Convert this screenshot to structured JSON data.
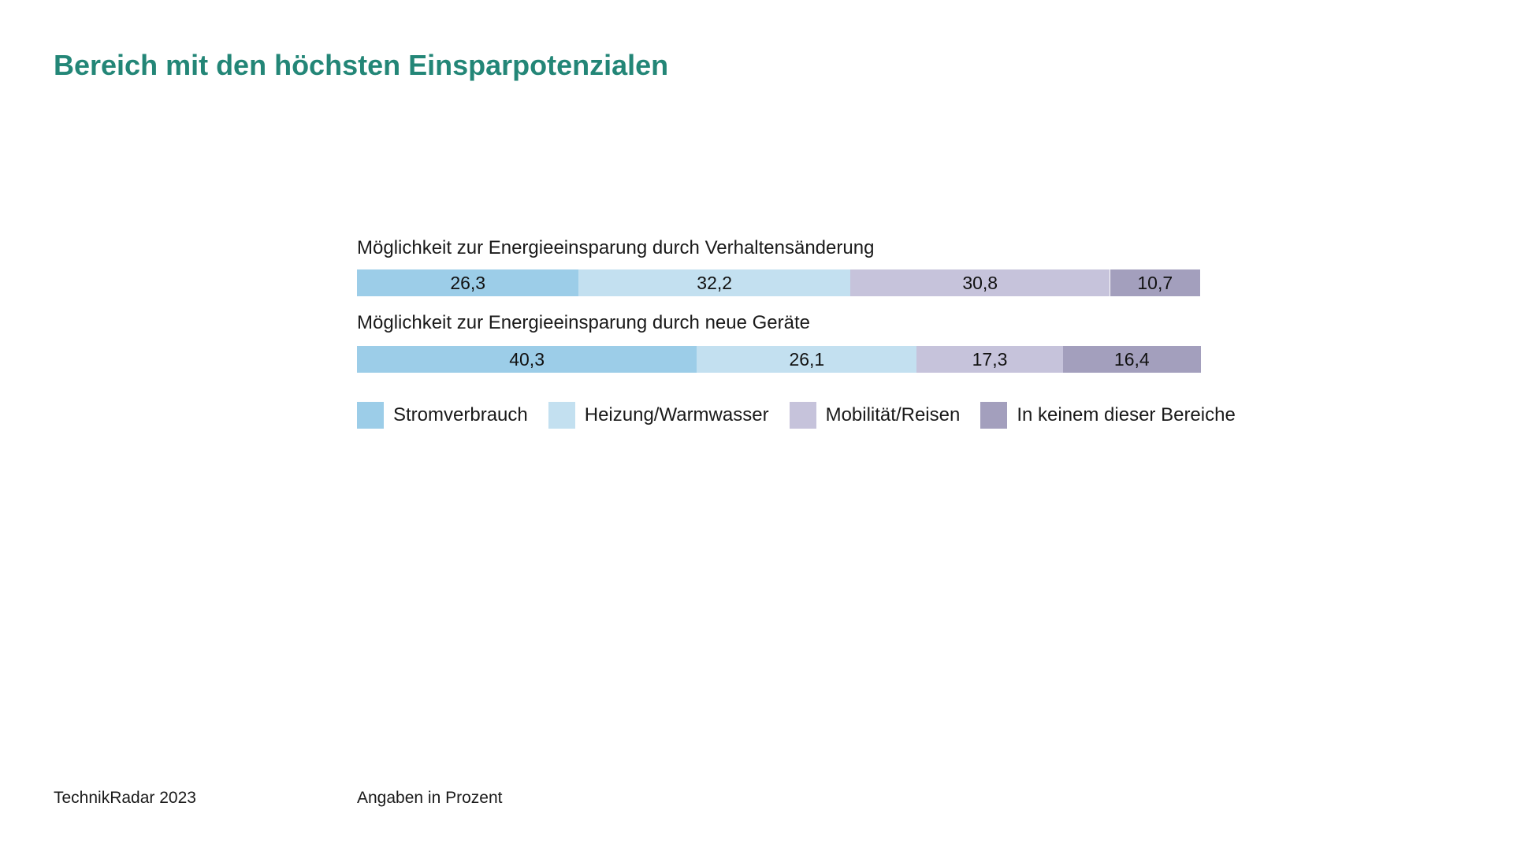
{
  "title": "Bereich mit den höchsten Einsparpotenzialen",
  "footer": {
    "source": "TechnikRadar 2023",
    "unit_note": "Angaben in Prozent"
  },
  "chart_data": {
    "type": "bar",
    "orientation": "horizontal",
    "stacked": true,
    "categories": [
      "Möglichkeit zur Energieeinsparung durch Verhaltensänderung",
      "Möglichkeit zur Energieeinsparung durch neue Geräte"
    ],
    "series": [
      {
        "name": "Stromverbrauch",
        "color": "#9ccde8",
        "values": [
          26.3,
          40.3
        ],
        "labels": [
          "26,3",
          "40,3"
        ]
      },
      {
        "name": "Heizung/Warmwasser",
        "color": "#c3e0f0",
        "values": [
          32.2,
          26.1
        ],
        "labels": [
          "32,2",
          "26,1"
        ]
      },
      {
        "name": "Mobilität/Reisen",
        "color": "#c6c3db",
        "values": [
          30.8,
          17.3
        ],
        "labels": [
          "30,8",
          "17,3"
        ]
      },
      {
        "name": "In keinem dieser Bereiche",
        "color": "#a39fbd",
        "values": [
          10.7,
          16.4
        ],
        "labels": [
          "10,7",
          "16,4"
        ]
      }
    ],
    "xlim": [
      0,
      100
    ],
    "legend_position": "bottom",
    "grid": false
  }
}
